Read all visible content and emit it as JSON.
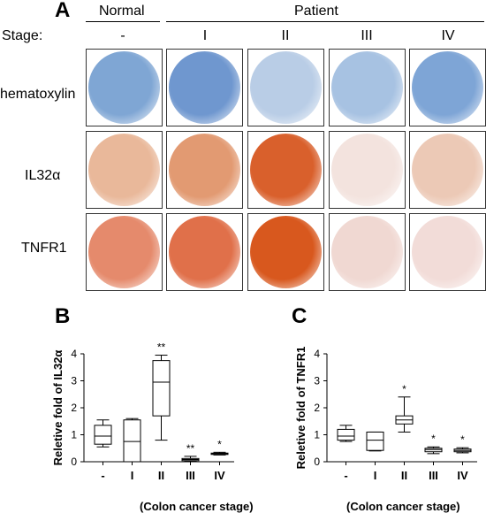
{
  "panel_a": {
    "letter": "A",
    "group_normal": "Normal",
    "group_patient": "Patient",
    "stage_label": "Stage:",
    "stages": [
      "-",
      "I",
      "II",
      "III",
      "IV"
    ],
    "rows": [
      "hematoxylin",
      "IL32α",
      "TNFR1"
    ]
  },
  "panel_b": {
    "letter": "B"
  },
  "panel_c": {
    "letter": "C"
  },
  "chart_data": [
    {
      "type": "box",
      "ylabel": "Reletive fold of IL32α",
      "xlabel": "(Colon cancer stage)",
      "categories": [
        "-",
        "I",
        "II",
        "III",
        "IV"
      ],
      "ylim": [
        0,
        4
      ],
      "yticks": [
        0,
        1,
        2,
        3,
        4
      ],
      "boxes": [
        {
          "whisker_low": 0.55,
          "q1": 0.65,
          "median": 0.95,
          "q3": 1.35,
          "whisker_high": 1.55
        },
        {
          "whisker_low": 0.0,
          "q1": 0.0,
          "median": 0.75,
          "q3": 1.55,
          "whisker_high": 1.6
        },
        {
          "whisker_low": 0.8,
          "q1": 1.7,
          "median": 2.95,
          "q3": 3.75,
          "whisker_high": 3.95
        },
        {
          "whisker_low": 0.02,
          "q1": 0.04,
          "median": 0.08,
          "q3": 0.12,
          "whisker_high": 0.2
        },
        {
          "whisker_low": 0.25,
          "q1": 0.27,
          "median": 0.3,
          "q3": 0.32,
          "whisker_high": 0.35
        }
      ],
      "significance": [
        "",
        "",
        "**",
        "**",
        "*"
      ]
    },
    {
      "type": "box",
      "ylabel": "Reletive fold of TNFR1",
      "xlabel": "(Colon cancer stage)",
      "categories": [
        "-",
        "I",
        "II",
        "III",
        "IV"
      ],
      "ylim": [
        0,
        4
      ],
      "yticks": [
        0,
        1,
        2,
        3,
        4
      ],
      "boxes": [
        {
          "whisker_low": 0.75,
          "q1": 0.8,
          "median": 0.95,
          "q3": 1.2,
          "whisker_high": 1.35
        },
        {
          "whisker_low": 0.4,
          "q1": 0.42,
          "median": 0.8,
          "q3": 1.1,
          "whisker_high": 1.1
        },
        {
          "whisker_low": 1.1,
          "q1": 1.4,
          "median": 1.55,
          "q3": 1.7,
          "whisker_high": 2.4
        },
        {
          "whisker_low": 0.3,
          "q1": 0.37,
          "median": 0.45,
          "q3": 0.5,
          "whisker_high": 0.55
        },
        {
          "whisker_low": 0.33,
          "q1": 0.37,
          "median": 0.42,
          "q3": 0.47,
          "whisker_high": 0.52
        }
      ],
      "significance": [
        "",
        "",
        "*",
        "*",
        "*"
      ]
    }
  ],
  "colors": {
    "hematoxylin": [
      "#7fa6d4",
      "#6f97cf",
      "#b9cde6",
      "#a7c2e2",
      "#7ea5d6"
    ],
    "il32": [
      "#e9b89a",
      "#e29a72",
      "#d9602c",
      "#f3e3de",
      "#ecc9b6"
    ],
    "tnfr1": [
      "#e58a6c",
      "#e0704a",
      "#d8581e",
      "#f0d8d2",
      "#f2dcd8"
    ]
  }
}
